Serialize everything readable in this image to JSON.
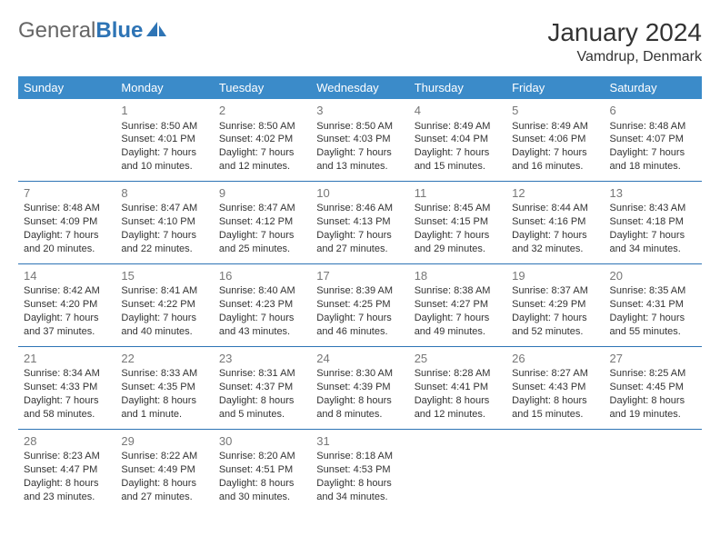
{
  "logo": {
    "part1": "General",
    "part2": "Blue"
  },
  "title": "January 2024",
  "location": "Vamdrup, Denmark",
  "colors": {
    "header_bg": "#3b8bc9",
    "header_text": "#ffffff",
    "border": "#2e74b5",
    "daynum": "#777777",
    "body_text": "#333333"
  },
  "weekdays": [
    "Sunday",
    "Monday",
    "Tuesday",
    "Wednesday",
    "Thursday",
    "Friday",
    "Saturday"
  ],
  "cells": [
    {
      "day": "",
      "sunrise": "",
      "sunset": "",
      "daylight": ""
    },
    {
      "day": "1",
      "sunrise": "Sunrise: 8:50 AM",
      "sunset": "Sunset: 4:01 PM",
      "daylight": "Daylight: 7 hours and 10 minutes."
    },
    {
      "day": "2",
      "sunrise": "Sunrise: 8:50 AM",
      "sunset": "Sunset: 4:02 PM",
      "daylight": "Daylight: 7 hours and 12 minutes."
    },
    {
      "day": "3",
      "sunrise": "Sunrise: 8:50 AM",
      "sunset": "Sunset: 4:03 PM",
      "daylight": "Daylight: 7 hours and 13 minutes."
    },
    {
      "day": "4",
      "sunrise": "Sunrise: 8:49 AM",
      "sunset": "Sunset: 4:04 PM",
      "daylight": "Daylight: 7 hours and 15 minutes."
    },
    {
      "day": "5",
      "sunrise": "Sunrise: 8:49 AM",
      "sunset": "Sunset: 4:06 PM",
      "daylight": "Daylight: 7 hours and 16 minutes."
    },
    {
      "day": "6",
      "sunrise": "Sunrise: 8:48 AM",
      "sunset": "Sunset: 4:07 PM",
      "daylight": "Daylight: 7 hours and 18 minutes."
    },
    {
      "day": "7",
      "sunrise": "Sunrise: 8:48 AM",
      "sunset": "Sunset: 4:09 PM",
      "daylight": "Daylight: 7 hours and 20 minutes."
    },
    {
      "day": "8",
      "sunrise": "Sunrise: 8:47 AM",
      "sunset": "Sunset: 4:10 PM",
      "daylight": "Daylight: 7 hours and 22 minutes."
    },
    {
      "day": "9",
      "sunrise": "Sunrise: 8:47 AM",
      "sunset": "Sunset: 4:12 PM",
      "daylight": "Daylight: 7 hours and 25 minutes."
    },
    {
      "day": "10",
      "sunrise": "Sunrise: 8:46 AM",
      "sunset": "Sunset: 4:13 PM",
      "daylight": "Daylight: 7 hours and 27 minutes."
    },
    {
      "day": "11",
      "sunrise": "Sunrise: 8:45 AM",
      "sunset": "Sunset: 4:15 PM",
      "daylight": "Daylight: 7 hours and 29 minutes."
    },
    {
      "day": "12",
      "sunrise": "Sunrise: 8:44 AM",
      "sunset": "Sunset: 4:16 PM",
      "daylight": "Daylight: 7 hours and 32 minutes."
    },
    {
      "day": "13",
      "sunrise": "Sunrise: 8:43 AM",
      "sunset": "Sunset: 4:18 PM",
      "daylight": "Daylight: 7 hours and 34 minutes."
    },
    {
      "day": "14",
      "sunrise": "Sunrise: 8:42 AM",
      "sunset": "Sunset: 4:20 PM",
      "daylight": "Daylight: 7 hours and 37 minutes."
    },
    {
      "day": "15",
      "sunrise": "Sunrise: 8:41 AM",
      "sunset": "Sunset: 4:22 PM",
      "daylight": "Daylight: 7 hours and 40 minutes."
    },
    {
      "day": "16",
      "sunrise": "Sunrise: 8:40 AM",
      "sunset": "Sunset: 4:23 PM",
      "daylight": "Daylight: 7 hours and 43 minutes."
    },
    {
      "day": "17",
      "sunrise": "Sunrise: 8:39 AM",
      "sunset": "Sunset: 4:25 PM",
      "daylight": "Daylight: 7 hours and 46 minutes."
    },
    {
      "day": "18",
      "sunrise": "Sunrise: 8:38 AM",
      "sunset": "Sunset: 4:27 PM",
      "daylight": "Daylight: 7 hours and 49 minutes."
    },
    {
      "day": "19",
      "sunrise": "Sunrise: 8:37 AM",
      "sunset": "Sunset: 4:29 PM",
      "daylight": "Daylight: 7 hours and 52 minutes."
    },
    {
      "day": "20",
      "sunrise": "Sunrise: 8:35 AM",
      "sunset": "Sunset: 4:31 PM",
      "daylight": "Daylight: 7 hours and 55 minutes."
    },
    {
      "day": "21",
      "sunrise": "Sunrise: 8:34 AM",
      "sunset": "Sunset: 4:33 PM",
      "daylight": "Daylight: 7 hours and 58 minutes."
    },
    {
      "day": "22",
      "sunrise": "Sunrise: 8:33 AM",
      "sunset": "Sunset: 4:35 PM",
      "daylight": "Daylight: 8 hours and 1 minute."
    },
    {
      "day": "23",
      "sunrise": "Sunrise: 8:31 AM",
      "sunset": "Sunset: 4:37 PM",
      "daylight": "Daylight: 8 hours and 5 minutes."
    },
    {
      "day": "24",
      "sunrise": "Sunrise: 8:30 AM",
      "sunset": "Sunset: 4:39 PM",
      "daylight": "Daylight: 8 hours and 8 minutes."
    },
    {
      "day": "25",
      "sunrise": "Sunrise: 8:28 AM",
      "sunset": "Sunset: 4:41 PM",
      "daylight": "Daylight: 8 hours and 12 minutes."
    },
    {
      "day": "26",
      "sunrise": "Sunrise: 8:27 AM",
      "sunset": "Sunset: 4:43 PM",
      "daylight": "Daylight: 8 hours and 15 minutes."
    },
    {
      "day": "27",
      "sunrise": "Sunrise: 8:25 AM",
      "sunset": "Sunset: 4:45 PM",
      "daylight": "Daylight: 8 hours and 19 minutes."
    },
    {
      "day": "28",
      "sunrise": "Sunrise: 8:23 AM",
      "sunset": "Sunset: 4:47 PM",
      "daylight": "Daylight: 8 hours and 23 minutes."
    },
    {
      "day": "29",
      "sunrise": "Sunrise: 8:22 AM",
      "sunset": "Sunset: 4:49 PM",
      "daylight": "Daylight: 8 hours and 27 minutes."
    },
    {
      "day": "30",
      "sunrise": "Sunrise: 8:20 AM",
      "sunset": "Sunset: 4:51 PM",
      "daylight": "Daylight: 8 hours and 30 minutes."
    },
    {
      "day": "31",
      "sunrise": "Sunrise: 8:18 AM",
      "sunset": "Sunset: 4:53 PM",
      "daylight": "Daylight: 8 hours and 34 minutes."
    },
    {
      "day": "",
      "sunrise": "",
      "sunset": "",
      "daylight": ""
    },
    {
      "day": "",
      "sunrise": "",
      "sunset": "",
      "daylight": ""
    },
    {
      "day": "",
      "sunrise": "",
      "sunset": "",
      "daylight": ""
    }
  ]
}
